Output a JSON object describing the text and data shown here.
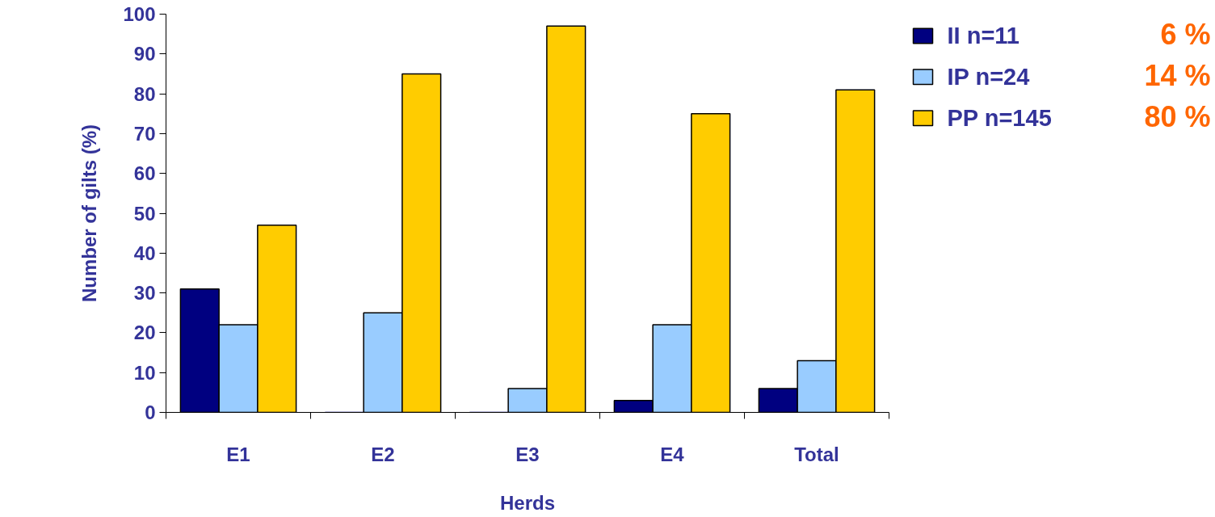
{
  "chart_data": {
    "type": "bar",
    "xlabel": "Herds",
    "ylabel": "Number of gilts (%)",
    "categories": [
      "E1",
      "E2",
      "E3",
      "E4",
      "Total"
    ],
    "series": [
      {
        "name": "II n=11",
        "color": "#000080",
        "values": [
          31,
          0,
          0,
          3,
          6
        ]
      },
      {
        "name": "IP n=24",
        "color": "#99ccff",
        "values": [
          22,
          25,
          6,
          22,
          13
        ]
      },
      {
        "name": "PP n=145",
        "color": "#ffcc00",
        "values": [
          47,
          85,
          97,
          75,
          81
        ]
      }
    ],
    "ylim": [
      0,
      100
    ],
    "yticks": [
      0,
      10,
      20,
      30,
      40,
      50,
      60,
      70,
      80,
      90,
      100
    ],
    "grid": false,
    "legend": "top right",
    "annotations": [
      "6 %",
      "14 %",
      "80 %"
    ]
  }
}
